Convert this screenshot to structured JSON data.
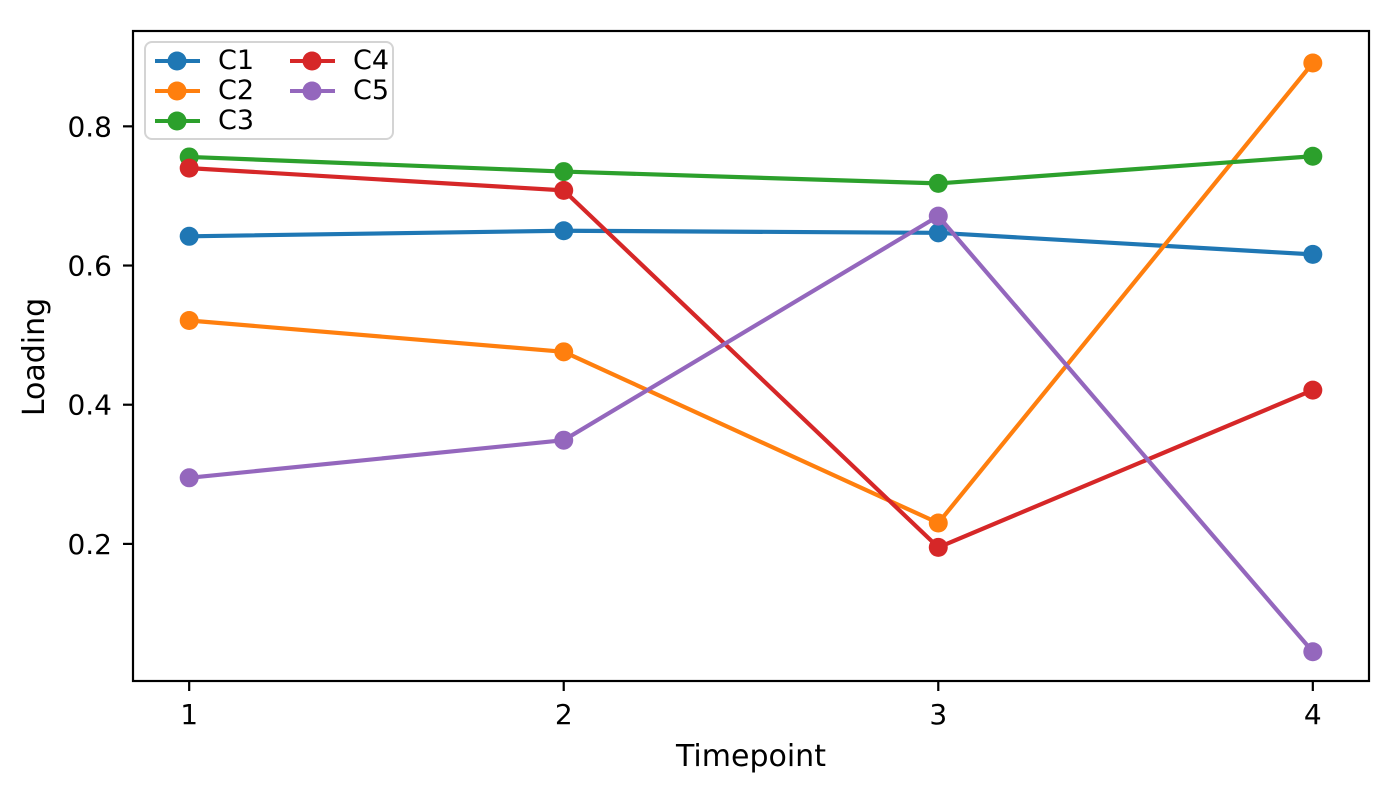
{
  "figure": {
    "background": "#ffffff",
    "spine_color": "#000000"
  },
  "chart_data": {
    "type": "line",
    "title": "",
    "xlabel": "Timepoint",
    "ylabel": "Loading",
    "x": [
      1,
      2,
      3,
      4
    ],
    "x_tick_labels": [
      "1",
      "2",
      "3",
      "4"
    ],
    "y_tick_values": [
      0.2,
      0.4,
      0.6,
      0.8
    ],
    "y_tick_labels": [
      "0.2",
      "0.4",
      "0.6",
      "0.8"
    ],
    "xlim": [
      0.85,
      4.15
    ],
    "ylim": [
      0.003,
      0.937
    ],
    "grid": false,
    "legend_position": "upper-left",
    "legend_columns": 2,
    "series": [
      {
        "name": "C1",
        "color": "#1f77b4",
        "values": [
          0.642,
          0.65,
          0.647,
          0.616
        ]
      },
      {
        "name": "C2",
        "color": "#ff7f0e",
        "values": [
          0.521,
          0.476,
          0.23,
          0.891
        ]
      },
      {
        "name": "C3",
        "color": "#2ca02c",
        "values": [
          0.756,
          0.735,
          0.718,
          0.757
        ]
      },
      {
        "name": "C4",
        "color": "#d62728",
        "values": [
          0.74,
          0.708,
          0.195,
          0.421
        ]
      },
      {
        "name": "C5",
        "color": "#9467bd",
        "values": [
          0.295,
          0.349,
          0.671,
          0.045
        ]
      }
    ]
  }
}
